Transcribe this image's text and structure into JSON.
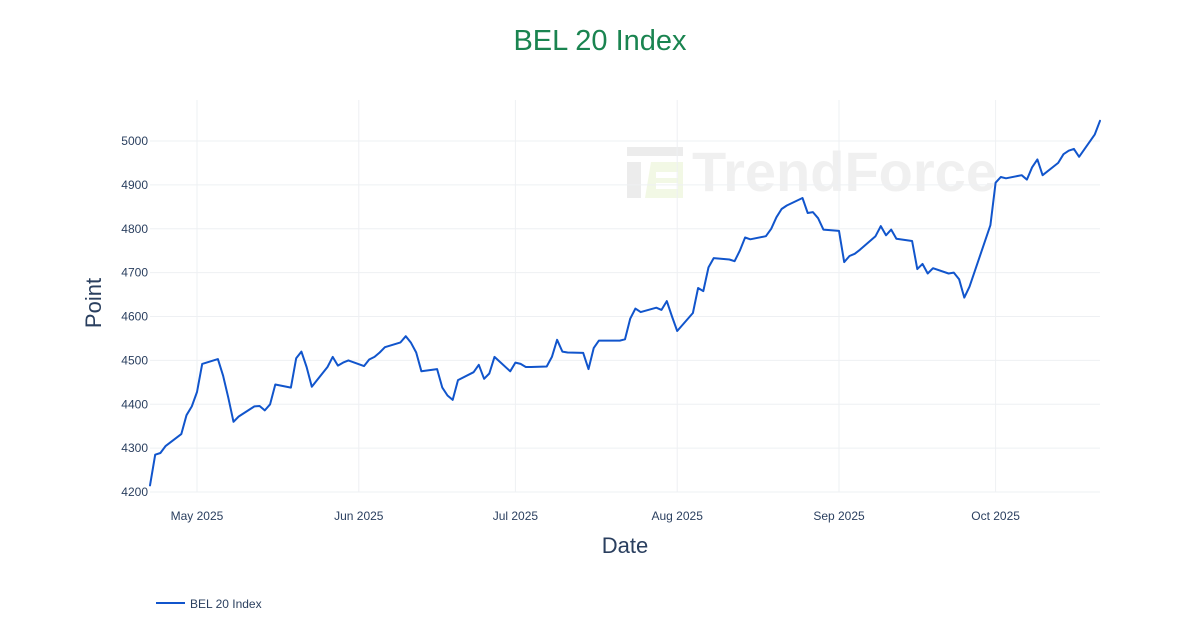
{
  "chart_data": {
    "type": "line",
    "title": "BEL 20 Index",
    "xlabel": "Date",
    "ylabel": "Point",
    "ylim": [
      4200,
      5020
    ],
    "xlim": [
      "2025-04-22",
      "2025-10-21"
    ],
    "x_ticks": [
      "2025-05-01",
      "2025-06-01",
      "2025-07-01",
      "2025-08-01",
      "2025-09-01",
      "2025-10-01"
    ],
    "x_tick_labels": [
      "May 2025",
      "Jun 2025",
      "Jul 2025",
      "Aug 2025",
      "Sep 2025",
      "Oct 2025"
    ],
    "y_ticks": [
      4200,
      4300,
      4400,
      4500,
      4600,
      4700,
      4800,
      4900,
      5000
    ],
    "grid": true,
    "legend_position": "bottom-left",
    "series": [
      {
        "name": "BEL 20 Index",
        "color": "#1155cc",
        "points": [
          [
            "2025-04-22",
            4215
          ],
          [
            "2025-04-23",
            4285
          ],
          [
            "2025-04-24",
            4289
          ],
          [
            "2025-04-25",
            4305
          ],
          [
            "2025-04-28",
            4332
          ],
          [
            "2025-04-29",
            4375
          ],
          [
            "2025-04-30",
            4395
          ],
          [
            "2025-05-01",
            4428
          ],
          [
            "2025-05-02",
            4492
          ],
          [
            "2025-05-05",
            4503
          ],
          [
            "2025-05-06",
            4465
          ],
          [
            "2025-05-07",
            4415
          ],
          [
            "2025-05-08",
            4360
          ],
          [
            "2025-05-09",
            4372
          ],
          [
            "2025-05-12",
            4395
          ],
          [
            "2025-05-13",
            4396
          ],
          [
            "2025-05-14",
            4386
          ],
          [
            "2025-05-15",
            4400
          ],
          [
            "2025-05-16",
            4445
          ],
          [
            "2025-05-19",
            4438
          ],
          [
            "2025-05-20",
            4505
          ],
          [
            "2025-05-21",
            4520
          ],
          [
            "2025-05-22",
            4485
          ],
          [
            "2025-05-23",
            4440
          ],
          [
            "2025-05-26",
            4485
          ],
          [
            "2025-05-27",
            4508
          ],
          [
            "2025-05-28",
            4488
          ],
          [
            "2025-05-29",
            4495
          ],
          [
            "2025-05-30",
            4500
          ],
          [
            "2025-06-02",
            4487
          ],
          [
            "2025-06-03",
            4502
          ],
          [
            "2025-06-04",
            4508
          ],
          [
            "2025-06-05",
            4518
          ],
          [
            "2025-06-06",
            4530
          ],
          [
            "2025-06-09",
            4541
          ],
          [
            "2025-06-10",
            4555
          ],
          [
            "2025-06-11",
            4540
          ],
          [
            "2025-06-12",
            4518
          ],
          [
            "2025-06-13",
            4475
          ],
          [
            "2025-06-16",
            4480
          ],
          [
            "2025-06-17",
            4438
          ],
          [
            "2025-06-18",
            4420
          ],
          [
            "2025-06-19",
            4410
          ],
          [
            "2025-06-20",
            4455
          ],
          [
            "2025-06-23",
            4473
          ],
          [
            "2025-06-24",
            4490
          ],
          [
            "2025-06-25",
            4458
          ],
          [
            "2025-06-26",
            4470
          ],
          [
            "2025-06-27",
            4508
          ],
          [
            "2025-06-30",
            4475
          ],
          [
            "2025-07-01",
            4495
          ],
          [
            "2025-07-02",
            4492
          ],
          [
            "2025-07-03",
            4485
          ],
          [
            "2025-07-04",
            4485
          ],
          [
            "2025-07-07",
            4486
          ],
          [
            "2025-07-08",
            4508
          ],
          [
            "2025-07-09",
            4547
          ],
          [
            "2025-07-10",
            4520
          ],
          [
            "2025-07-11",
            4518
          ],
          [
            "2025-07-14",
            4517
          ],
          [
            "2025-07-15",
            4480
          ],
          [
            "2025-07-16",
            4528
          ],
          [
            "2025-07-17",
            4545
          ],
          [
            "2025-07-18",
            4545
          ],
          [
            "2025-07-21",
            4545
          ],
          [
            "2025-07-22",
            4548
          ],
          [
            "2025-07-23",
            4595
          ],
          [
            "2025-07-24",
            4618
          ],
          [
            "2025-07-25",
            4610
          ],
          [
            "2025-07-28",
            4620
          ],
          [
            "2025-07-29",
            4615
          ],
          [
            "2025-07-30",
            4635
          ],
          [
            "2025-07-31",
            4600
          ],
          [
            "2025-08-01",
            4567
          ],
          [
            "2025-08-04",
            4608
          ],
          [
            "2025-08-05",
            4665
          ],
          [
            "2025-08-06",
            4658
          ],
          [
            "2025-08-07",
            4712
          ],
          [
            "2025-08-08",
            4733
          ],
          [
            "2025-08-11",
            4730
          ],
          [
            "2025-08-12",
            4726
          ],
          [
            "2025-08-13",
            4750
          ],
          [
            "2025-08-14",
            4780
          ],
          [
            "2025-08-15",
            4776
          ],
          [
            "2025-08-18",
            4783
          ],
          [
            "2025-08-19",
            4800
          ],
          [
            "2025-08-20",
            4826
          ],
          [
            "2025-08-21",
            4845
          ],
          [
            "2025-08-22",
            4853
          ],
          [
            "2025-08-25",
            4870
          ],
          [
            "2025-08-26",
            4836
          ],
          [
            "2025-08-27",
            4838
          ],
          [
            "2025-08-28",
            4824
          ],
          [
            "2025-08-29",
            4798
          ],
          [
            "2025-09-01",
            4795
          ],
          [
            "2025-09-02",
            4724
          ],
          [
            "2025-09-03",
            4738
          ],
          [
            "2025-09-04",
            4743
          ],
          [
            "2025-09-05",
            4752
          ],
          [
            "2025-09-08",
            4783
          ],
          [
            "2025-09-09",
            4806
          ],
          [
            "2025-09-10",
            4785
          ],
          [
            "2025-09-11",
            4798
          ],
          [
            "2025-09-12",
            4777
          ],
          [
            "2025-09-15",
            4772
          ],
          [
            "2025-09-16",
            4708
          ],
          [
            "2025-09-17",
            4720
          ],
          [
            "2025-09-18",
            4698
          ],
          [
            "2025-09-19",
            4710
          ],
          [
            "2025-09-22",
            4698
          ],
          [
            "2025-09-23",
            4700
          ],
          [
            "2025-09-24",
            4685
          ],
          [
            "2025-09-25",
            4643
          ],
          [
            "2025-09-26",
            4668
          ],
          [
            "2025-09-30",
            4808
          ],
          [
            "2025-10-01",
            4905
          ],
          [
            "2025-10-02",
            4918
          ],
          [
            "2025-10-03",
            4915
          ],
          [
            "2025-10-06",
            4922
          ],
          [
            "2025-10-07",
            4912
          ],
          [
            "2025-10-08",
            4940
          ],
          [
            "2025-10-09",
            4958
          ],
          [
            "2025-10-10",
            4922
          ],
          [
            "2025-10-13",
            4950
          ],
          [
            "2025-10-14",
            4970
          ],
          [
            "2025-10-15",
            4978
          ],
          [
            "2025-10-16",
            4982
          ],
          [
            "2025-10-17",
            4964
          ],
          [
            "2025-10-20",
            5015
          ],
          [
            "2025-10-21",
            5046
          ]
        ]
      }
    ]
  },
  "watermark": {
    "text": "TrendForce"
  }
}
